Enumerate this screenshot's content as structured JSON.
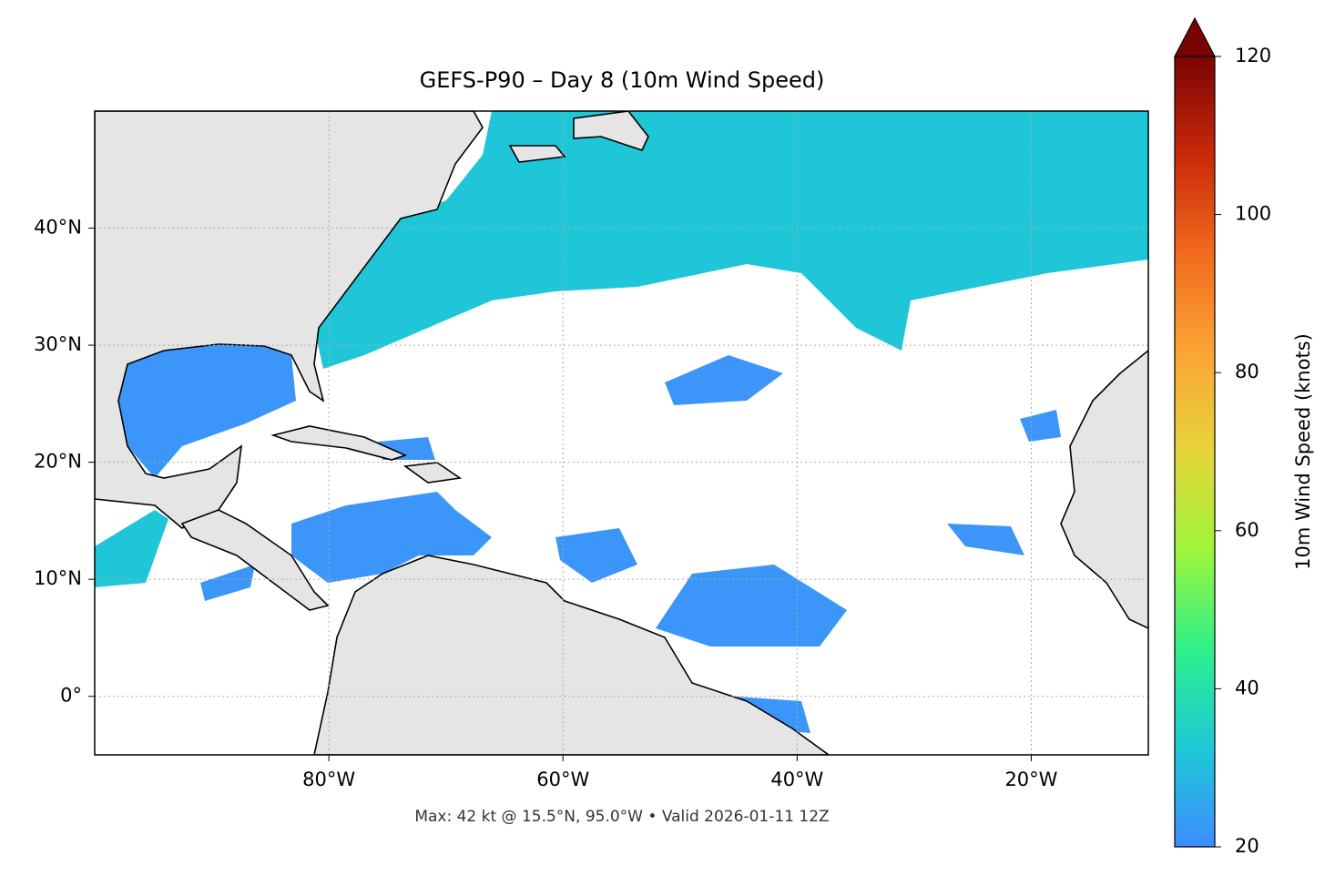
{
  "chart_data": {
    "type": "map",
    "title": "GEFS-P90 – Day 8 (10m Wind Speed)",
    "annotation": "Max: 42 kt @ 15.5°N, 95.0°W • Valid 2026-01-11 12Z",
    "xlim": [
      -100,
      -10
    ],
    "ylim": [
      -5,
      50
    ],
    "xticks": [
      {
        "value": -80,
        "label": "80°W"
      },
      {
        "value": -60,
        "label": "60°W"
      },
      {
        "value": -40,
        "label": "40°W"
      },
      {
        "value": -20,
        "label": "20°W"
      }
    ],
    "yticks": [
      {
        "value": 0,
        "label": "0°"
      },
      {
        "value": 10,
        "label": "10°N"
      },
      {
        "value": 20,
        "label": "20°N"
      },
      {
        "value": 30,
        "label": "30°N"
      },
      {
        "value": 40,
        "label": "40°N"
      }
    ],
    "grid": true,
    "colorbar": {
      "label": "10m Wind Speed (knots)",
      "lim": [
        20,
        120
      ],
      "ticks": [
        20,
        40,
        60,
        80,
        100,
        120
      ],
      "extend": "max",
      "colors": [
        "#3d8dff",
        "#1ec8d6",
        "#2ef08a",
        "#9ef53a",
        "#e6d43a",
        "#fba535",
        "#f26a1e",
        "#c9290a",
        "#7a0403"
      ]
    }
  }
}
